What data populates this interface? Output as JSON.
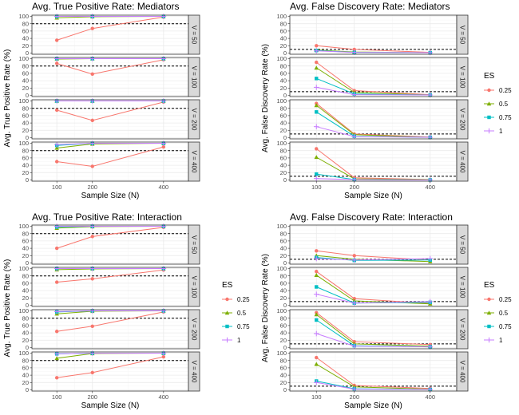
{
  "chart_data": [
    {
      "type": "line",
      "title": "Avg. True Positive Rate: Mediators",
      "xlabel": "Sample Size (N)",
      "ylabel": "Avg. True Positive Rate (%)",
      "x": [
        100,
        200,
        400
      ],
      "xlim": [
        30,
        470
      ],
      "ylim": [
        0,
        100
      ],
      "yticks": [
        0,
        20,
        40,
        60,
        80,
        100
      ],
      "threshold": 80,
      "legend": "none",
      "facets": [
        {
          "label": "V = 50",
          "series": [
            {
              "name": "0.25",
              "values": [
                35,
                67,
                98
              ]
            },
            {
              "name": "0.5",
              "values": [
                96,
                99,
                100
              ]
            },
            {
              "name": "0.75",
              "values": [
                100,
                100,
                100
              ]
            },
            {
              "name": "1",
              "values": [
                100,
                100,
                100
              ]
            }
          ]
        },
        {
          "label": "V = 100",
          "series": [
            {
              "name": "0.25",
              "values": [
                87,
                58,
                97
              ]
            },
            {
              "name": "0.5",
              "values": [
                99,
                100,
                100
              ]
            },
            {
              "name": "0.75",
              "values": [
                100,
                100,
                100
              ]
            },
            {
              "name": "1",
              "values": [
                100,
                100,
                100
              ]
            }
          ]
        },
        {
          "label": "V = 200",
          "series": [
            {
              "name": "0.25",
              "values": [
                75,
                47,
                97
              ]
            },
            {
              "name": "0.5",
              "values": [
                100,
                100,
                100
              ]
            },
            {
              "name": "0.75",
              "values": [
                100,
                100,
                100
              ]
            },
            {
              "name": "1",
              "values": [
                100,
                100,
                100
              ]
            }
          ]
        },
        {
          "label": "V = 400",
          "series": [
            {
              "name": "0.25",
              "values": [
                50,
                37,
                90
              ]
            },
            {
              "name": "0.5",
              "values": [
                87,
                98,
                100
              ]
            },
            {
              "name": "0.75",
              "values": [
                94,
                100,
                100
              ]
            },
            {
              "name": "1",
              "values": [
                96,
                100,
                100
              ]
            }
          ]
        }
      ]
    },
    {
      "type": "line",
      "title": "Avg. False Discovery Rate: Mediators",
      "xlabel": "Sample Size (N)",
      "ylabel": "Avg. False Discovery Rate (%)",
      "x": [
        100,
        200,
        400
      ],
      "xlim": [
        30,
        470
      ],
      "ylim": [
        0,
        100
      ],
      "yticks": [
        0,
        20,
        40,
        60,
        80,
        100
      ],
      "threshold": 10,
      "legend": "right",
      "facets": [
        {
          "label": "V = 50",
          "series": [
            {
              "name": "0.25",
              "values": [
                20,
                10,
                2
              ]
            },
            {
              "name": "0.5",
              "values": [
                8,
                3,
                1
              ]
            },
            {
              "name": "0.75",
              "values": [
                7,
                2,
                1
              ]
            },
            {
              "name": "1",
              "values": [
                6,
                2,
                1
              ]
            }
          ]
        },
        {
          "label": "V = 100",
          "series": [
            {
              "name": "0.25",
              "values": [
                90,
                13,
                2
              ]
            },
            {
              "name": "0.5",
              "values": [
                75,
                8,
                1
              ]
            },
            {
              "name": "0.75",
              "values": [
                46,
                4,
                1
              ]
            },
            {
              "name": "1",
              "values": [
                22,
                2,
                1
              ]
            }
          ]
        },
        {
          "label": "V = 200",
          "series": [
            {
              "name": "0.25",
              "values": [
                93,
                10,
                2
              ]
            },
            {
              "name": "0.5",
              "values": [
                88,
                8,
                1
              ]
            },
            {
              "name": "0.75",
              "values": [
                70,
                4,
                1
              ]
            },
            {
              "name": "1",
              "values": [
                30,
                3,
                1
              ]
            }
          ]
        },
        {
          "label": "V = 400",
          "series": [
            {
              "name": "0.25",
              "values": [
                85,
                6,
                1
              ]
            },
            {
              "name": "0.5",
              "values": [
                62,
                3,
                1
              ]
            },
            {
              "name": "0.75",
              "values": [
                16,
                1,
                0
              ]
            },
            {
              "name": "1",
              "values": [
                4,
                1,
                0
              ]
            }
          ]
        }
      ]
    },
    {
      "type": "line",
      "title": "Avg. True Positive Rate: Interaction",
      "xlabel": "Sample Size (N)",
      "ylabel": "Avg. True Positive Rate (%)",
      "x": [
        100,
        200,
        400
      ],
      "xlim": [
        30,
        470
      ],
      "ylim": [
        0,
        100
      ],
      "yticks": [
        0,
        20,
        40,
        60,
        80,
        100
      ],
      "threshold": 80,
      "legend": "right",
      "facets": [
        {
          "label": "V = 50",
          "series": [
            {
              "name": "0.25",
              "values": [
                40,
                72,
                97
              ]
            },
            {
              "name": "0.5",
              "values": [
                95,
                99,
                100
              ]
            },
            {
              "name": "0.75",
              "values": [
                98,
                100,
                100
              ]
            },
            {
              "name": "1",
              "values": [
                100,
                100,
                100
              ]
            }
          ]
        },
        {
          "label": "V = 100",
          "series": [
            {
              "name": "0.25",
              "values": [
                63,
                72,
                96
              ]
            },
            {
              "name": "0.5",
              "values": [
                97,
                99,
                100
              ]
            },
            {
              "name": "0.75",
              "values": [
                100,
                100,
                100
              ]
            },
            {
              "name": "1",
              "values": [
                100,
                100,
                100
              ]
            }
          ]
        },
        {
          "label": "V = 200",
          "series": [
            {
              "name": "0.25",
              "values": [
                44,
                58,
                97
              ]
            },
            {
              "name": "0.5",
              "values": [
                92,
                99,
                100
              ]
            },
            {
              "name": "0.75",
              "values": [
                97,
                100,
                100
              ]
            },
            {
              "name": "1",
              "values": [
                98,
                100,
                100
              ]
            }
          ]
        },
        {
          "label": "V = 400",
          "series": [
            {
              "name": "0.25",
              "values": [
                33,
                47,
                90
              ]
            },
            {
              "name": "0.5",
              "values": [
                86,
                99,
                100
              ]
            },
            {
              "name": "0.75",
              "values": [
                98,
                100,
                100
              ]
            },
            {
              "name": "1",
              "values": [
                98,
                100,
                100
              ]
            }
          ]
        }
      ]
    },
    {
      "type": "line",
      "title": "Avg. False Discovery Rate: Interaction",
      "xlabel": "Sample Size (N)",
      "ylabel": "Avg. False Discovery Rate (%)",
      "x": [
        100,
        200,
        400
      ],
      "xlim": [
        30,
        470
      ],
      "ylim": [
        0,
        100
      ],
      "yticks": [
        0,
        20,
        40,
        60,
        80,
        100
      ],
      "threshold": 10,
      "legend": "right",
      "facets": [
        {
          "label": "V = 50",
          "series": [
            {
              "name": "0.25",
              "values": [
                33,
                20,
                8
              ]
            },
            {
              "name": "0.5",
              "values": [
                20,
                10,
                4
              ]
            },
            {
              "name": "0.75",
              "values": [
                15,
                7,
                8
              ]
            },
            {
              "name": "1",
              "values": [
                12,
                8,
                12
              ]
            }
          ]
        },
        {
          "label": "V = 100",
          "series": [
            {
              "name": "0.25",
              "values": [
                92,
                18,
                5
              ]
            },
            {
              "name": "0.5",
              "values": [
                82,
                12,
                4
              ]
            },
            {
              "name": "0.75",
              "values": [
                50,
                6,
                8
              ]
            },
            {
              "name": "1",
              "values": [
                30,
                6,
                10
              ]
            }
          ]
        },
        {
          "label": "V = 200",
          "series": [
            {
              "name": "0.25",
              "values": [
                95,
                16,
                8
              ]
            },
            {
              "name": "0.5",
              "values": [
                90,
                10,
                4
              ]
            },
            {
              "name": "0.75",
              "values": [
                75,
                5,
                2
              ]
            },
            {
              "name": "1",
              "values": [
                38,
                4,
                2
              ]
            }
          ]
        },
        {
          "label": "V = 400",
          "series": [
            {
              "name": "0.25",
              "values": [
                88,
                12,
                4
              ]
            },
            {
              "name": "0.5",
              "values": [
                70,
                8,
                2
              ]
            },
            {
              "name": "0.75",
              "values": [
                24,
                3,
                1
              ]
            },
            {
              "name": "1",
              "values": [
                20,
                2,
                1
              ]
            }
          ]
        }
      ]
    }
  ],
  "legend": {
    "title": "ES",
    "entries": [
      {
        "label": "0.25",
        "color": "#F8766D",
        "shape": "circle"
      },
      {
        "label": "0.5",
        "color": "#7CAE00",
        "shape": "triangle"
      },
      {
        "label": "0.75",
        "color": "#00BFC4",
        "shape": "square"
      },
      {
        "label": "1",
        "color": "#C77CFF",
        "shape": "plus"
      }
    ]
  },
  "colors": {
    "panel_background": "#FFFFFF",
    "grid_major": "#EBEBEB",
    "grid_minor": "#F5F5F5",
    "strip_fill": "#D9D9D9",
    "threshold_line": "#000000"
  }
}
